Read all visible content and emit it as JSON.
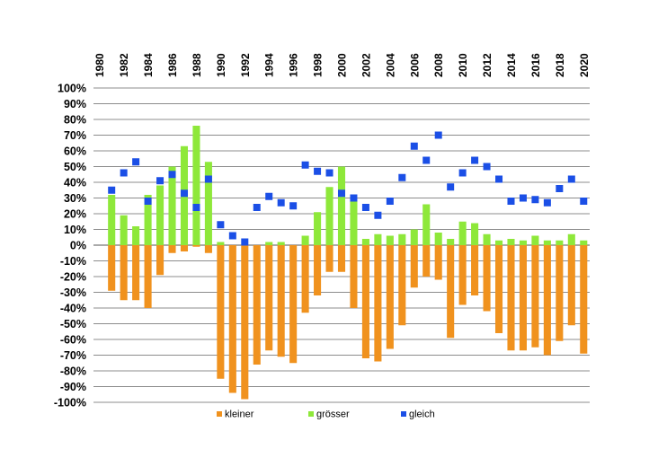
{
  "chart_data": {
    "type": "bar",
    "title": "",
    "xlabel": "",
    "ylabel": "",
    "ylim": [
      -100,
      100
    ],
    "y_step": 10,
    "y_unit": "%",
    "grid": "horizontal",
    "x_axis_position": "top",
    "legend_position": "bottom",
    "years": [
      1981,
      1982,
      1983,
      1984,
      1985,
      1986,
      1987,
      1988,
      1989,
      1990,
      1991,
      1992,
      1993,
      1994,
      1995,
      1996,
      1997,
      1998,
      1999,
      2000,
      2001,
      2002,
      2003,
      2004,
      2005,
      2006,
      2007,
      2008,
      2009,
      2010,
      2011,
      2012,
      2013,
      2014,
      2015,
      2016,
      2017,
      2018,
      2019,
      2020
    ],
    "tick_labels": [
      "1980",
      "1982",
      "1984",
      "1986",
      "1988",
      "1990",
      "1992",
      "1994",
      "1996",
      "1998",
      "2000",
      "2002",
      "2004",
      "2006",
      "2008",
      "2010",
      "2012",
      "2014",
      "2016",
      "2018",
      "2020"
    ],
    "series": [
      {
        "name": "kleiner",
        "kind": "bar",
        "color": "#F0921E",
        "values": [
          -29,
          -35,
          -35,
          -40,
          -19,
          -5,
          -4,
          -1,
          -5,
          -85,
          -94,
          -98,
          -76,
          -67,
          -71,
          -75,
          -43,
          -32,
          -17,
          -17,
          -40,
          -72,
          -74,
          -66,
          -51,
          -27,
          -20,
          -22,
          -59,
          -38,
          -32,
          -42,
          -56,
          -67,
          -67,
          -65,
          -70,
          -61,
          -51,
          -69
        ]
      },
      {
        "name": "grösser",
        "kind": "bar",
        "color": "#8EE83A",
        "values": [
          32,
          19,
          12,
          32,
          38,
          50,
          63,
          76,
          53,
          2,
          0,
          0,
          0,
          2,
          2,
          0,
          6,
          21,
          37,
          50,
          28,
          4,
          7,
          6,
          7,
          10,
          26,
          8,
          4,
          15,
          14,
          7,
          3,
          4,
          3,
          6,
          3,
          3,
          7,
          3
        ]
      },
      {
        "name": "gleich",
        "kind": "marker",
        "color": "#1B4FE6",
        "values": [
          35,
          46,
          53,
          28,
          41,
          45,
          33,
          24,
          42,
          13,
          6,
          2,
          24,
          31,
          27,
          25,
          51,
          47,
          46,
          33,
          30,
          24,
          19,
          28,
          43,
          63,
          54,
          70,
          37,
          46,
          54,
          50,
          42,
          28,
          30,
          29,
          27,
          36,
          42,
          28
        ]
      }
    ]
  }
}
